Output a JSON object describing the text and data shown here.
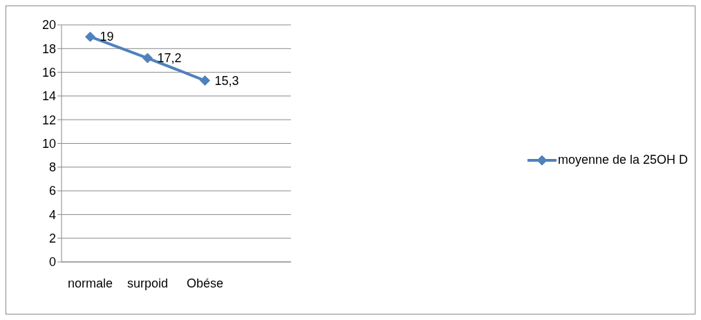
{
  "chart_data": {
    "type": "line",
    "categories": [
      "normale",
      "surpoid",
      "Obése",
      null
    ],
    "series": [
      {
        "name": "moyenne de la 25OH D",
        "color": "#4f81bd",
        "values": [
          19,
          17.2,
          15.3,
          null
        ],
        "value_labels": [
          "19",
          "17,2",
          "15,3",
          null
        ]
      }
    ],
    "ylim": [
      0,
      20
    ],
    "yticks": [
      0,
      2,
      4,
      6,
      8,
      10,
      12,
      14,
      16,
      18,
      20
    ],
    "grid": "y",
    "legend": "right",
    "marker": "diamond",
    "line_style": "solid"
  }
}
